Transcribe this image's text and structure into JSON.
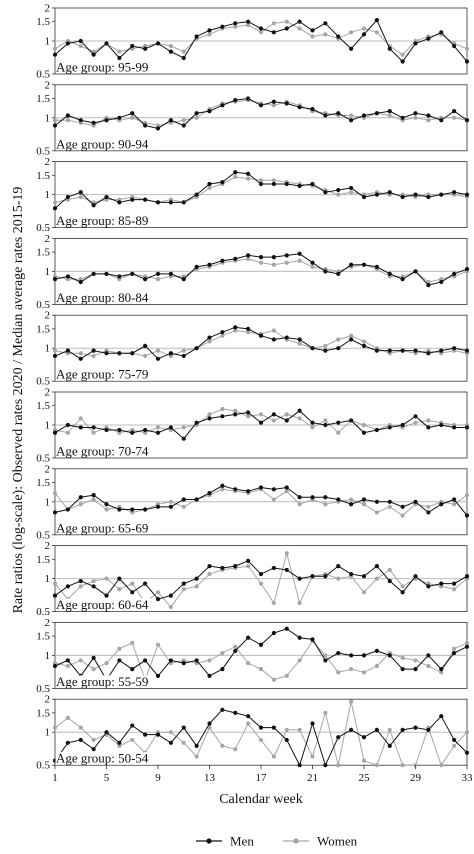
{
  "chart_data": {
    "type": "line",
    "ylabel": "Rate ratios (log-scale): Observed rates 2020 / Median average rates 2015-19",
    "xlabel": "Calendar week",
    "x_ticks": [
      1,
      5,
      9,
      13,
      17,
      21,
      25,
      29,
      33
    ],
    "y_ticks": [
      0.5,
      1,
      1.5,
      2
    ],
    "y_scale": "log",
    "ylim": [
      0.5,
      2
    ],
    "xlim": [
      1,
      33
    ],
    "reference_line": 1,
    "legend": {
      "position": "bottom",
      "entries": [
        "Men",
        "Women"
      ]
    },
    "colors": {
      "Men": "#111111",
      "Women": "#a6a6a6",
      "reference": "#bbbbbb"
    },
    "panels": [
      {
        "label": "Age group: 95-99",
        "men": [
          0.75,
          0.95,
          1.0,
          0.75,
          0.95,
          0.7,
          0.9,
          0.85,
          0.95,
          0.8,
          0.7,
          1.1,
          1.25,
          1.35,
          1.45,
          1.5,
          1.3,
          1.2,
          1.3,
          1.5,
          1.25,
          1.45,
          1.1,
          0.85,
          1.15,
          1.55,
          0.85,
          0.65,
          0.95,
          1.05,
          1.2,
          0.9,
          0.65
        ],
        "women": [
          0.85,
          1.0,
          0.9,
          0.8,
          0.95,
          0.8,
          0.85,
          0.9,
          0.95,
          0.9,
          0.8,
          1.05,
          1.15,
          1.3,
          1.35,
          1.4,
          1.2,
          1.45,
          1.5,
          1.3,
          1.1,
          1.15,
          1.05,
          1.2,
          1.3,
          1.2,
          0.9,
          0.75,
          1.0,
          1.1,
          1.15,
          0.95,
          0.85
        ]
      },
      {
        "label": "Age group: 90-94",
        "men": [
          0.85,
          1.05,
          0.95,
          0.9,
          0.95,
          1.0,
          1.1,
          0.85,
          0.8,
          0.95,
          0.85,
          1.1,
          1.15,
          1.3,
          1.45,
          1.5,
          1.3,
          1.4,
          1.35,
          1.25,
          1.2,
          1.05,
          1.1,
          0.95,
          1.05,
          1.1,
          1.15,
          1.0,
          1.1,
          1.05,
          0.95,
          1.15,
          0.95
        ],
        "women": [
          0.95,
          0.95,
          0.9,
          0.85,
          1.0,
          0.95,
          1.0,
          0.9,
          0.85,
          0.9,
          0.95,
          1.0,
          1.2,
          1.35,
          1.4,
          1.45,
          1.35,
          1.3,
          1.4,
          1.3,
          1.15,
          1.1,
          1.05,
          1.05,
          1.0,
          1.1,
          1.05,
          0.95,
          1.0,
          0.95,
          1.0,
          1.0,
          0.95
        ]
      },
      {
        "label": "Age group: 85-89",
        "men": [
          0.75,
          0.95,
          1.05,
          0.8,
          0.95,
          0.85,
          0.9,
          0.9,
          0.85,
          0.85,
          0.85,
          1.0,
          1.25,
          1.3,
          1.6,
          1.55,
          1.25,
          1.25,
          1.25,
          1.2,
          1.25,
          1.05,
          1.1,
          1.15,
          0.95,
          1.0,
          1.05,
          0.95,
          1.0,
          0.95,
          1.0,
          1.05,
          1.0
        ],
        "women": [
          0.85,
          0.9,
          0.95,
          0.85,
          0.9,
          0.9,
          0.95,
          0.9,
          0.85,
          0.9,
          0.85,
          0.95,
          1.15,
          1.25,
          1.45,
          1.4,
          1.35,
          1.35,
          1.3,
          1.25,
          1.2,
          1.1,
          1.0,
          1.05,
          1.0,
          1.05,
          1.0,
          1.0,
          0.95,
          1.0,
          1.0,
          1.0,
          0.95
        ]
      },
      {
        "label": "Age group: 80-84",
        "men": [
          0.85,
          0.9,
          0.8,
          0.95,
          0.95,
          0.9,
          0.95,
          0.85,
          0.95,
          0.95,
          0.85,
          1.1,
          1.15,
          1.25,
          1.3,
          1.4,
          1.35,
          1.35,
          1.4,
          1.45,
          1.2,
          1.0,
          0.95,
          1.15,
          1.15,
          1.1,
          0.95,
          0.85,
          1.0,
          0.75,
          0.8,
          0.95,
          1.05
        ],
        "women": [
          0.9,
          0.85,
          0.85,
          0.95,
          0.95,
          0.85,
          0.95,
          0.9,
          0.85,
          0.9,
          0.9,
          1.05,
          1.1,
          1.2,
          1.25,
          1.3,
          1.2,
          1.15,
          1.2,
          1.25,
          1.1,
          1.05,
          1.0,
          1.1,
          1.15,
          1.05,
          0.9,
          0.9,
          1.0,
          0.8,
          0.85,
          0.9,
          1.0
        ]
      },
      {
        "label": "Age group: 75-79",
        "men": [
          0.85,
          0.95,
          0.8,
          0.95,
          0.9,
          0.9,
          0.9,
          1.05,
          0.8,
          0.9,
          0.85,
          1.0,
          1.25,
          1.4,
          1.55,
          1.5,
          1.3,
          1.2,
          1.25,
          1.2,
          1.0,
          0.95,
          1.0,
          1.2,
          1.05,
          0.95,
          0.95,
          0.95,
          0.95,
          0.9,
          0.95,
          1.0,
          0.95
        ],
        "women": [
          0.95,
          0.9,
          0.9,
          0.85,
          0.95,
          0.9,
          0.9,
          0.85,
          0.95,
          0.85,
          0.95,
          1.0,
          1.15,
          1.3,
          1.45,
          1.4,
          1.35,
          1.45,
          1.2,
          1.1,
          1.0,
          1.05,
          1.2,
          1.3,
          1.15,
          1.0,
          0.9,
          0.95,
          0.9,
          0.95,
          0.9,
          0.95,
          0.9
        ]
      },
      {
        "label": "Age group: 70-74",
        "men": [
          0.85,
          1.0,
          0.95,
          0.95,
          0.9,
          0.9,
          0.85,
          0.9,
          0.85,
          0.95,
          0.75,
          1.05,
          1.15,
          1.2,
          1.25,
          1.3,
          1.05,
          1.25,
          1.1,
          1.35,
          1.05,
          1.0,
          1.05,
          1.1,
          0.85,
          0.9,
          0.95,
          1.0,
          1.2,
          0.95,
          1.0,
          0.95,
          0.95
        ],
        "women": [
          0.9,
          0.85,
          1.15,
          0.85,
          0.95,
          0.85,
          0.9,
          0.85,
          0.95,
          0.9,
          0.95,
          1.0,
          1.25,
          1.4,
          1.35,
          1.2,
          1.25,
          1.1,
          1.25,
          1.15,
          0.95,
          1.1,
          0.85,
          1.1,
          1.0,
          0.9,
          1.0,
          0.95,
          1.05,
          1.1,
          1.05,
          1.0,
          1.0
        ]
      },
      {
        "label": "Age group: 65-69",
        "men": [
          0.8,
          0.85,
          1.1,
          1.15,
          0.95,
          0.85,
          0.85,
          0.85,
          0.9,
          0.9,
          1.05,
          1.05,
          1.2,
          1.4,
          1.3,
          1.25,
          1.35,
          1.3,
          1.35,
          1.1,
          1.1,
          1.1,
          1.05,
          0.95,
          1.05,
          1.0,
          1.0,
          0.9,
          1.0,
          0.8,
          0.95,
          1.05,
          0.75
        ],
        "women": [
          1.2,
          0.85,
          0.95,
          1.05,
          0.85,
          0.9,
          0.8,
          0.85,
          0.95,
          1.0,
          0.9,
          1.05,
          1.15,
          1.3,
          1.25,
          1.2,
          1.3,
          1.05,
          1.25,
          0.95,
          1.05,
          0.95,
          1.0,
          1.05,
          0.95,
          0.8,
          0.9,
          0.75,
          0.95,
          0.9,
          1.0,
          0.95,
          1.15
        ]
      },
      {
        "label": "Age group: 60-64",
        "men": [
          0.7,
          0.85,
          0.95,
          0.85,
          0.7,
          1.0,
          0.75,
          0.9,
          0.65,
          0.7,
          0.9,
          1.0,
          1.3,
          1.25,
          1.3,
          1.45,
          1.1,
          1.25,
          1.2,
          1.0,
          1.05,
          1.05,
          1.3,
          1.1,
          1.05,
          1.3,
          0.95,
          0.75,
          1.05,
          0.85,
          0.9,
          0.9,
          1.05
        ],
        "women": [
          0.9,
          0.65,
          0.85,
          0.95,
          1.0,
          0.8,
          0.9,
          0.6,
          0.75,
          0.55,
          0.8,
          0.85,
          1.1,
          1.2,
          1.25,
          1.3,
          0.9,
          0.6,
          1.7,
          0.6,
          1.05,
          1.1,
          1.0,
          1.05,
          0.75,
          1.0,
          1.2,
          0.85,
          1.0,
          0.9,
          0.85,
          0.8,
          1.0
        ]
      },
      {
        "label": "Age group: 55-59",
        "men": [
          0.8,
          0.9,
          0.65,
          0.95,
          0.6,
          0.9,
          0.75,
          0.9,
          0.65,
          0.9,
          0.85,
          0.9,
          0.65,
          0.75,
          1.1,
          1.45,
          1.25,
          1.6,
          1.75,
          1.45,
          1.4,
          0.9,
          1.05,
          1.0,
          1.0,
          1.1,
          1.0,
          0.75,
          0.75,
          1.0,
          0.75,
          1.05,
          1.2
        ],
        "women": [
          0.85,
          0.8,
          0.9,
          0.75,
          0.85,
          1.15,
          1.3,
          0.6,
          1.25,
          0.85,
          0.9,
          0.85,
          0.9,
          1.05,
          1.2,
          0.85,
          0.75,
          0.6,
          0.65,
          0.9,
          1.35,
          1.0,
          0.7,
          0.75,
          0.7,
          0.8,
          1.05,
          0.95,
          0.9,
          0.8,
          0.7,
          1.15,
          1.3
        ]
      },
      {
        "label": "Age group: 50-54",
        "men": [
          0.55,
          0.8,
          0.85,
          0.7,
          1.0,
          0.8,
          1.15,
          0.95,
          0.95,
          0.8,
          1.1,
          0.75,
          1.2,
          1.6,
          1.5,
          1.4,
          1.1,
          1.1,
          0.85,
          0.5,
          1.2,
          0.5,
          0.9,
          1.05,
          0.9,
          1.05,
          0.75,
          1.05,
          1.1,
          1.05,
          1.4,
          0.85,
          0.65
        ],
        "women": [
          1.1,
          1.35,
          1.1,
          0.85,
          0.95,
          0.75,
          0.85,
          0.65,
          1.0,
          1.0,
          0.8,
          0.6,
          1.1,
          0.75,
          0.7,
          1.2,
          0.85,
          0.6,
          1.05,
          1.05,
          0.6,
          1.5,
          0.5,
          1.9,
          0.55,
          0.5,
          1.05,
          0.5,
          0.5,
          1.1,
          0.5,
          0.75,
          1.0
        ]
      }
    ]
  }
}
